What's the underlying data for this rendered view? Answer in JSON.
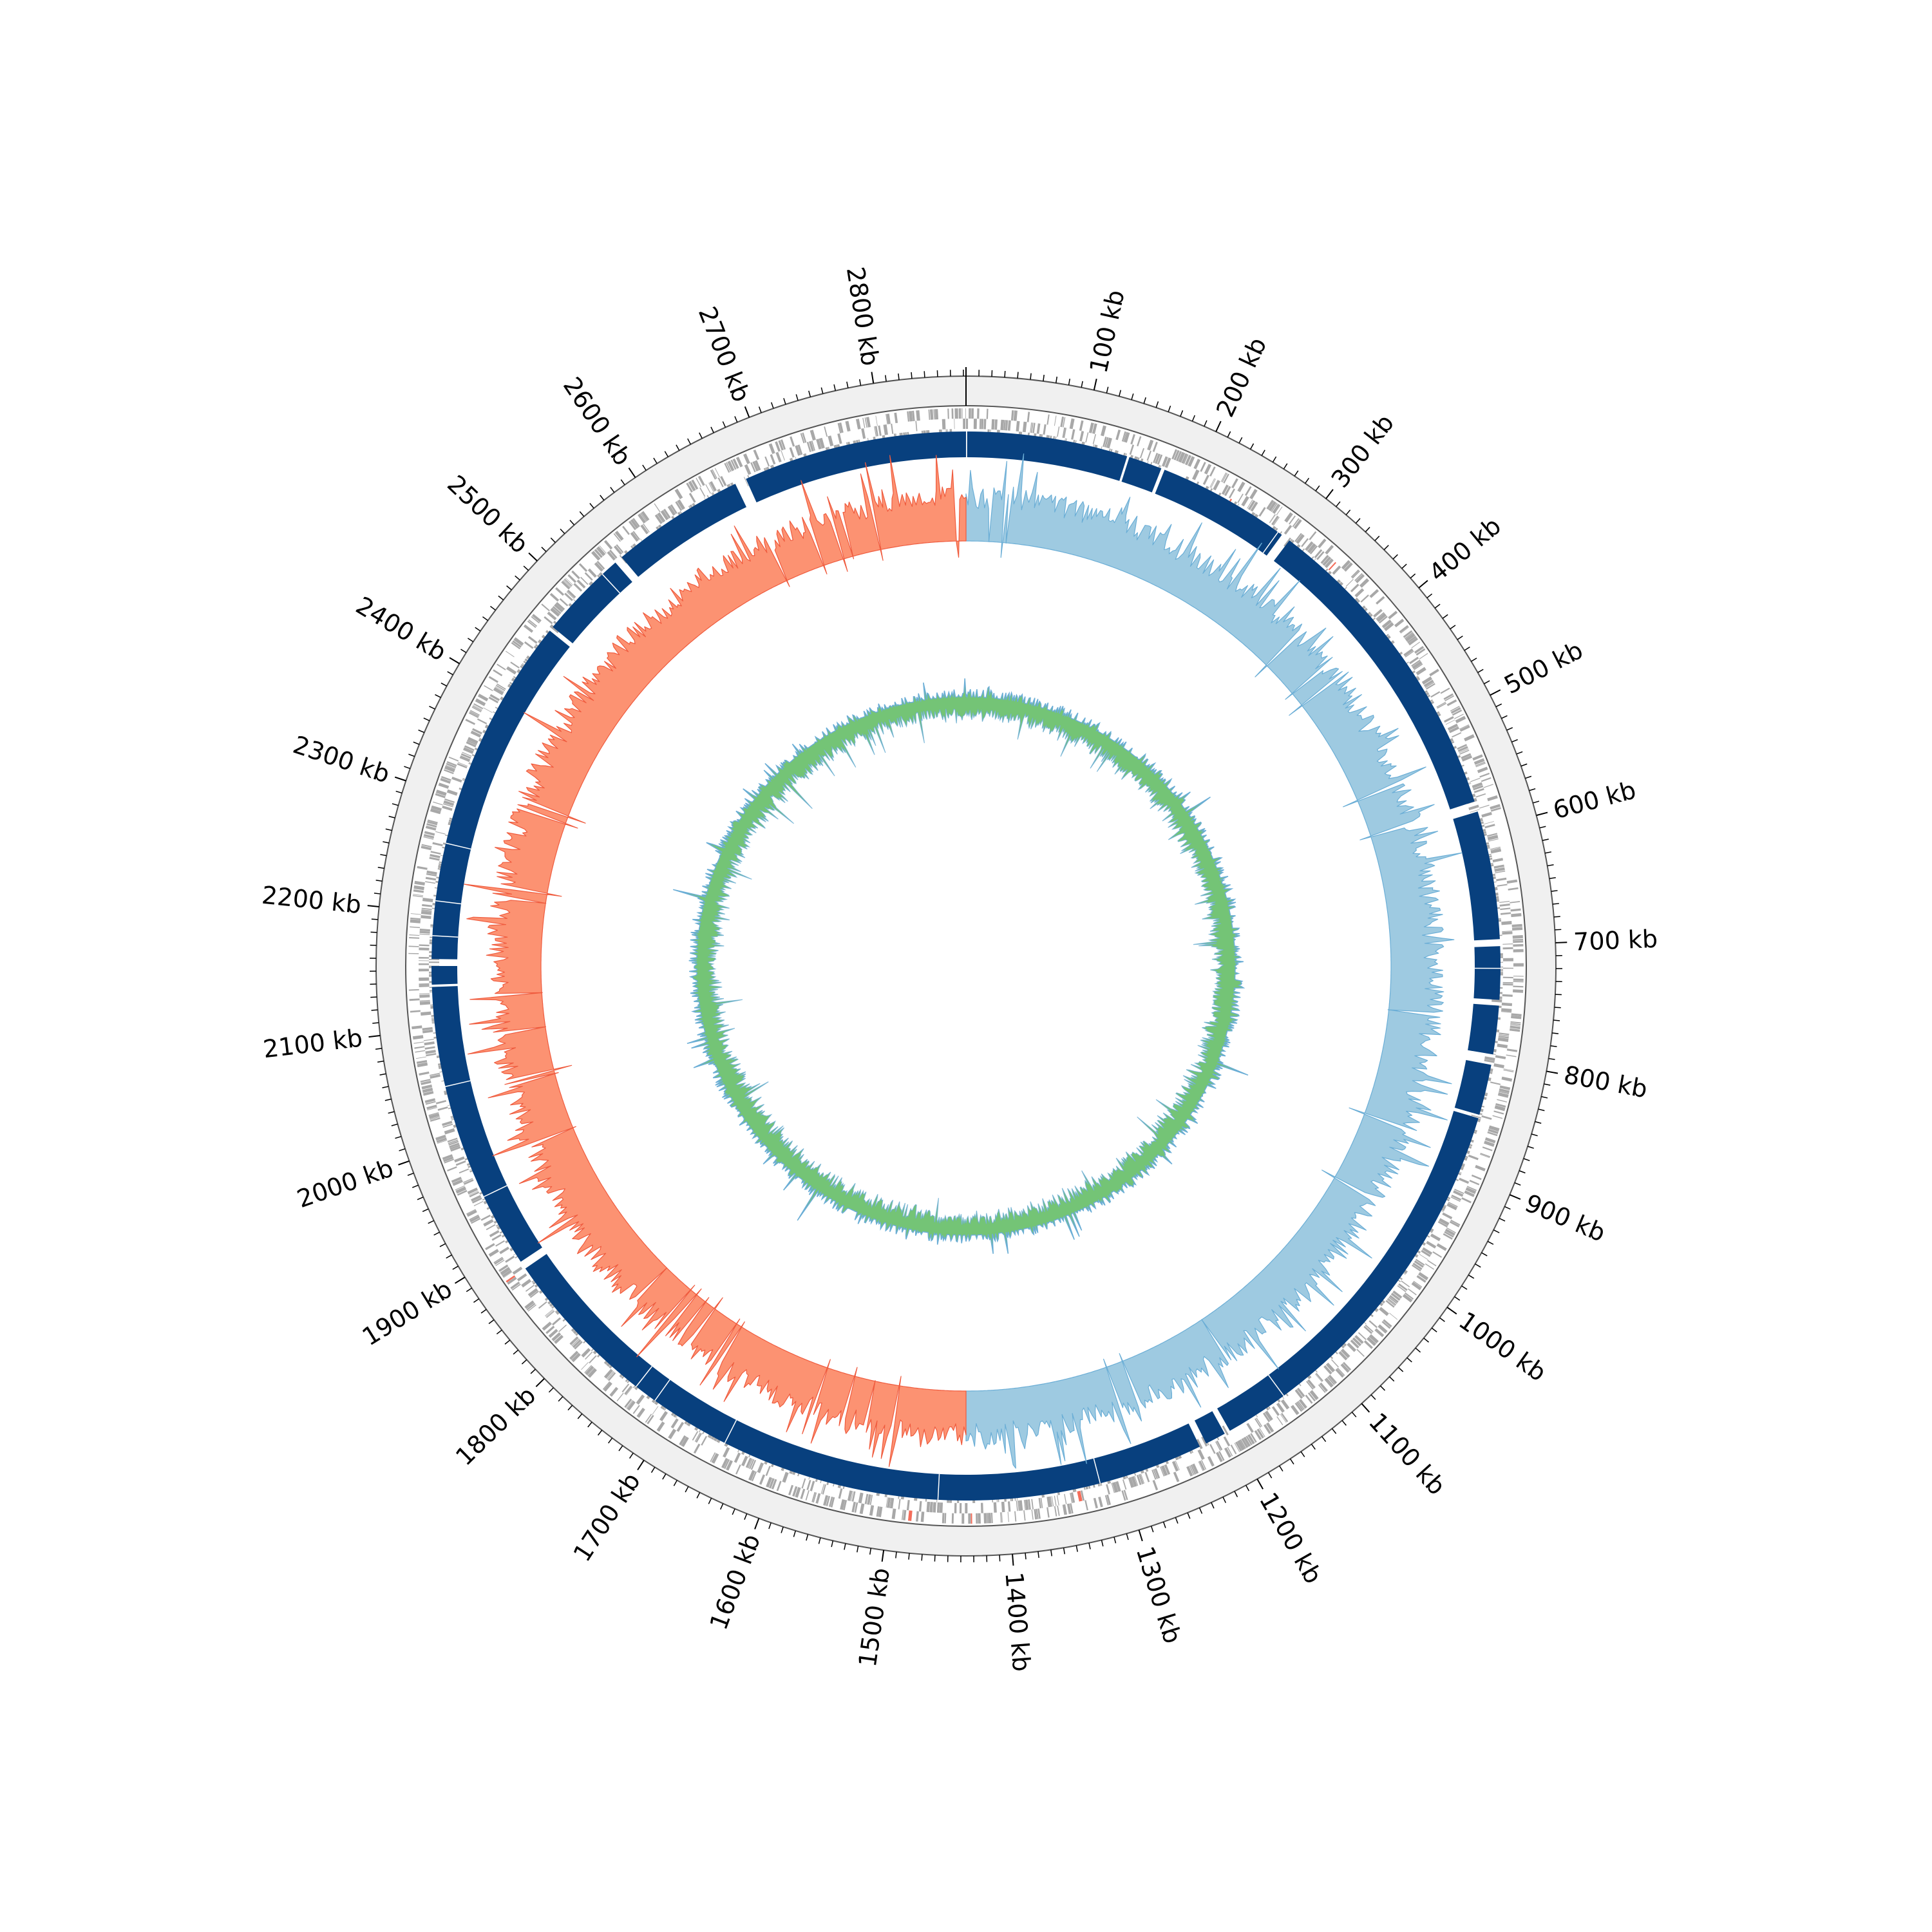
{
  "genome": {
    "length_kb": 2872,
    "tick_labels": [
      "100 kb",
      "200 kb",
      "300 kb",
      "400 kb",
      "500 kb",
      "600 kb",
      "700 kb",
      "800 kb",
      "900 kb",
      "1000 kb",
      "1100 kb",
      "1200 kb",
      "1300 kb",
      "1400 kb",
      "1500 kb",
      "1600 kb",
      "1700 kb",
      "1800 kb",
      "1900 kb",
      "2000 kb",
      "2100 kb",
      "2200 kb",
      "2300 kb",
      "2400 kb",
      "2500 kb",
      "2600 kb",
      "2700 kb",
      "2800 kb"
    ],
    "tick_values_kb": [
      100,
      200,
      300,
      400,
      500,
      600,
      700,
      800,
      900,
      1000,
      1100,
      1200,
      1300,
      1400,
      1500,
      1600,
      1700,
      1800,
      1900,
      2000,
      2100,
      2200,
      2300,
      2400,
      2500,
      2600,
      2700,
      2800
    ],
    "minor_tick_step_kb": 10
  },
  "tracks": {
    "contig_blocks_kb": [
      [
        1,
        140
      ],
      [
        142,
        171
      ],
      [
        174,
        289
      ],
      [
        297,
        575
      ],
      [
        584,
        695
      ],
      [
        701,
        747
      ],
      [
        752,
        794
      ],
      [
        803,
        847
      ],
      [
        850,
        1200
      ],
      [
        1205,
        1223
      ],
      [
        1229,
        1879
      ],
      [
        1886,
        2136
      ],
      [
        2138,
        2154
      ],
      [
        2160,
        2464
      ],
      [
        2468,
        2545
      ],
      [
        2552,
        2668
      ],
      [
        2678,
        2872
      ]
    ],
    "contig_gap_lines_kb": [
      285,
      720,
      1145,
      1320,
      1460,
      1650,
      1720,
      1740,
      1950,
      2050,
      2180,
      2210,
      2260,
      2530
    ],
    "gc_skew_sign_change_kb": [
      0,
      1436
    ],
    "colors": {
      "ring_background": "#f0f0f0",
      "ring_outline": "#555555",
      "gene_features": "#a8a8a8",
      "rrna_features": "#f46d5a",
      "contigs": "#08407e",
      "gc_skew_positive": "#9ecae1",
      "gc_skew_positive_line": "#6baed6",
      "gc_skew_negative": "#fc9272",
      "gc_skew_negative_line": "#ef5b3e",
      "gc_content_fill": "#74c476",
      "gc_content_line": "#6baed6",
      "ticks": "#000000"
    }
  }
}
